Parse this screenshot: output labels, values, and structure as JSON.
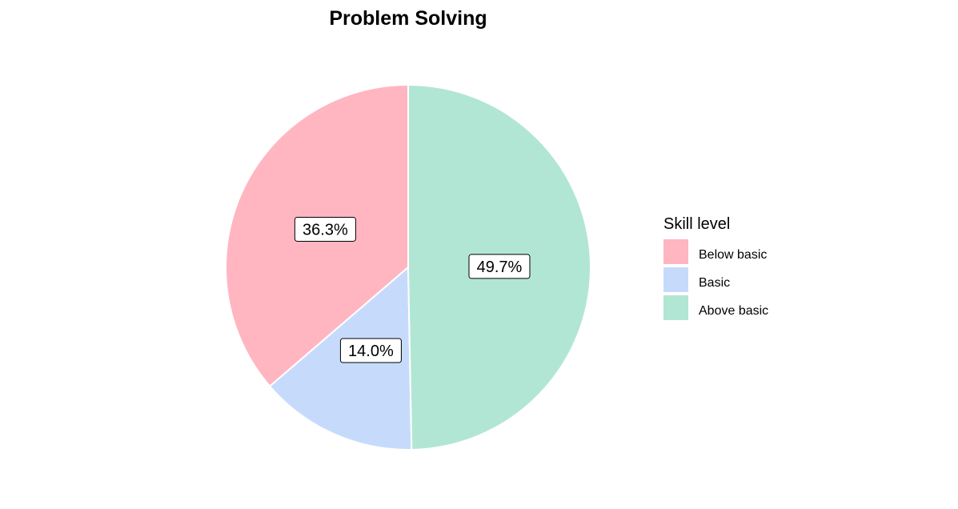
{
  "chart_data": {
    "type": "pie",
    "title": "Problem Solving",
    "legend_title": "Skill level",
    "legend_position": "right",
    "start_angle": "12 o'clock",
    "direction": "counterclockwise",
    "slices": [
      {
        "label": "Below basic",
        "value": 36.3,
        "display": "36.3%",
        "color": "#FFB6C1"
      },
      {
        "label": "Basic",
        "value": 14.0,
        "display": "14.0%",
        "color": "#C6DBFC"
      },
      {
        "label": "Above basic",
        "value": 49.7,
        "display": "49.7%",
        "color": "#B2E6D4"
      }
    ]
  }
}
